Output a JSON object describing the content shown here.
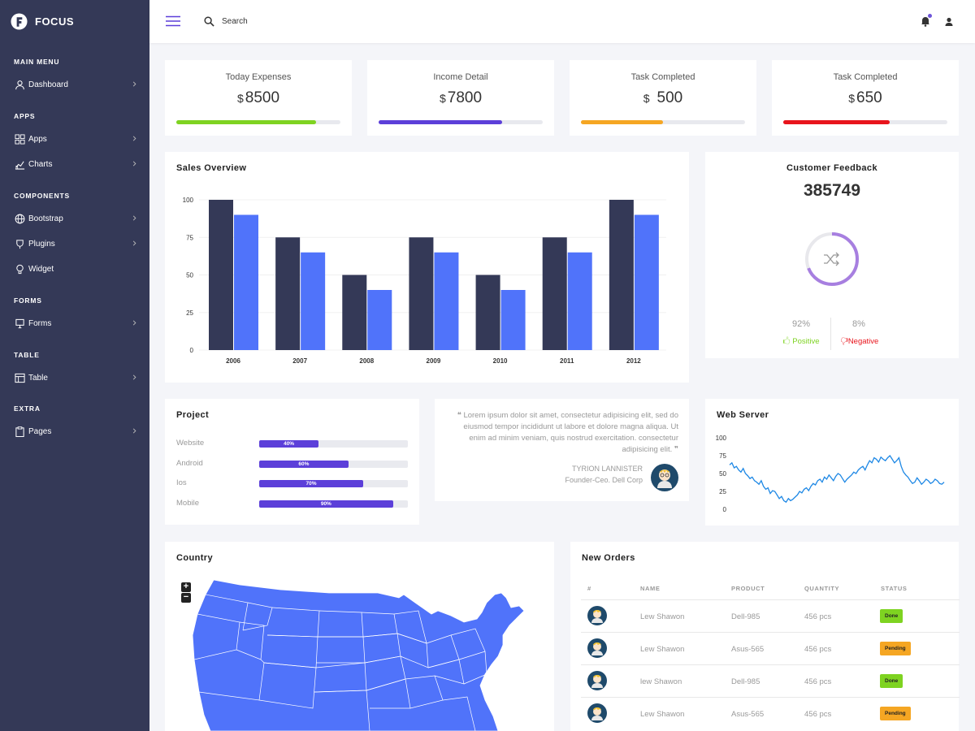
{
  "brand": {
    "name": "FOCUS"
  },
  "sidebar": {
    "sections": [
      "MAIN MENU",
      "APPS",
      "COMPONENTS",
      "FORMS",
      "TABLE",
      "EXTRA"
    ],
    "items": [
      {
        "label": "Dashboard",
        "icon": "user-icon"
      },
      {
        "label": "Apps",
        "icon": "grid-icon"
      },
      {
        "label": "Charts",
        "icon": "chart-icon"
      },
      {
        "label": "Bootstrap",
        "icon": "globe-icon"
      },
      {
        "label": "Plugins",
        "icon": "shield-icon"
      },
      {
        "label": "Widget",
        "icon": "lightbulb-icon"
      },
      {
        "label": "Forms",
        "icon": "form-icon"
      },
      {
        "label": "Table",
        "icon": "table-icon"
      },
      {
        "label": "Pages",
        "icon": "clipboard-icon"
      }
    ]
  },
  "topbar": {
    "search_placeholder": "Search"
  },
  "stats": [
    {
      "label": "Today Expenses",
      "currency": "$",
      "value": "8500",
      "progress": 0.85,
      "color": "#7ed321"
    },
    {
      "label": "Income Detail",
      "currency": "$",
      "value": "7800",
      "progress": 0.75,
      "color": "#5c3fd9"
    },
    {
      "label": "Task Completed",
      "currency": "$",
      "value": "500",
      "progress": 0.5,
      "color": "#f5a623"
    },
    {
      "label": "Task Completed",
      "currency": "$",
      "value": "650",
      "progress": 0.65,
      "color": "#e8141c"
    }
  ],
  "sales": {
    "title": "Sales Overview",
    "chart_data": {
      "type": "bar",
      "categories": [
        "2006",
        "2007",
        "2008",
        "2009",
        "2010",
        "2011",
        "2012"
      ],
      "series": [
        {
          "values": [
            100,
            75,
            50,
            75,
            50,
            75,
            100
          ],
          "color": "#343957"
        },
        {
          "values": [
            90,
            65,
            40,
            65,
            40,
            65,
            90
          ],
          "color": "#5073fa"
        }
      ],
      "yticks": [
        0,
        25,
        50,
        75,
        100
      ],
      "ylim": [
        0,
        100
      ]
    }
  },
  "feedback": {
    "title": "Customer Feedback",
    "total": "385749",
    "positive_pct": "92%",
    "negative_pct": "8%",
    "positive_label": "Positive",
    "negative_label": "Negative",
    "positive_color": "#7ed321",
    "negative_color": "#e8141c",
    "ring_color": "#a77fe0"
  },
  "project": {
    "title": "Project",
    "rows": [
      {
        "name": "Website",
        "pct": 40,
        "label": "40%"
      },
      {
        "name": "Android",
        "pct": 60,
        "label": "60%"
      },
      {
        "name": "Ios",
        "pct": 70,
        "label": "70%"
      },
      {
        "name": "Mobile",
        "pct": 90,
        "label": "90%"
      }
    ]
  },
  "testimonial": {
    "open_quote": "❝",
    "text": "Lorem ipsum dolor sit amet, consectetur adipisicing elit, sed do eiusmod tempor incididunt ut labore et dolore magna aliqua. Ut enim ad minim veniam, quis nostrud exercitation. consectetur adipisicing elit.",
    "close_quote": "❞",
    "author": "TYRION LANNISTER",
    "role": "Founder-Ceo. Dell Corp"
  },
  "webserver": {
    "title": "Web Server",
    "chart_data": {
      "type": "line",
      "yticks": [
        0,
        25,
        50,
        75,
        100
      ],
      "ylim": [
        0,
        100
      ],
      "values": [
        62,
        65,
        58,
        60,
        55,
        52,
        57,
        50,
        47,
        43,
        45,
        40,
        38,
        35,
        40,
        32,
        28,
        30,
        22,
        26,
        25,
        20,
        15,
        18,
        12,
        10,
        15,
        12,
        14,
        17,
        20,
        25,
        23,
        28,
        30,
        26,
        32,
        36,
        34,
        40,
        42,
        38,
        45,
        42,
        48,
        44,
        40,
        46,
        50,
        48,
        43,
        38,
        42,
        45,
        48,
        52,
        50,
        55,
        58,
        60,
        55,
        62,
        68,
        65,
        72,
        70,
        66,
        73,
        70,
        68,
        72,
        75,
        70,
        65,
        68,
        72,
        60,
        52,
        48,
        45,
        40,
        36,
        38,
        44,
        40,
        35,
        38,
        42,
        40,
        36,
        38,
        42,
        40,
        36,
        35,
        38
      ]
    }
  },
  "country": {
    "title": "Country",
    "zoom_in": "+",
    "zoom_out": "−",
    "map_color": "#5073fa"
  },
  "orders": {
    "title": "New Orders",
    "headers": [
      "#",
      "NAME",
      "PRODUCT",
      "QUANTITY",
      "STATUS"
    ],
    "rows": [
      {
        "name": "Lew Shawon",
        "product": "Dell-985",
        "quantity": "456 pcs",
        "status": "Done",
        "status_color": "#7ed321"
      },
      {
        "name": "Lew Shawon",
        "product": "Asus-565",
        "quantity": "456 pcs",
        "status": "Pending",
        "status_color": "#f5a623"
      },
      {
        "name": "lew Shawon",
        "product": "Dell-985",
        "quantity": "456 pcs",
        "status": "Done",
        "status_color": "#7ed321"
      },
      {
        "name": "Lew Shawon",
        "product": "Asus-565",
        "quantity": "456 pcs",
        "status": "Pending",
        "status_color": "#f5a623"
      }
    ]
  }
}
